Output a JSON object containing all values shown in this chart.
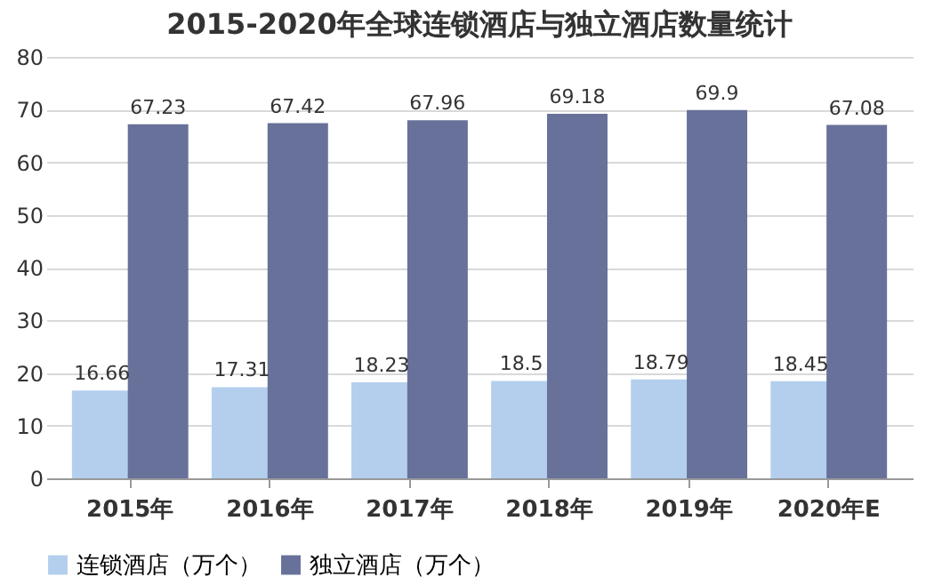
{
  "chart_data": {
    "type": "bar",
    "title": "2015-2020年全球连锁酒店与独立酒店数量统计",
    "categories": [
      "2015年",
      "2016年",
      "2017年",
      "2018年",
      "2019年",
      "2020年E"
    ],
    "series": [
      {
        "name": "连锁酒店（万个）",
        "color": "#b4cfee",
        "values": [
          16.66,
          17.31,
          18.23,
          18.5,
          18.79,
          18.45
        ]
      },
      {
        "name": "独立酒店（万个）",
        "color": "#67719a",
        "values": [
          67.23,
          67.42,
          67.96,
          69.18,
          69.9,
          67.08
        ]
      }
    ],
    "ylim": [
      0,
      80
    ],
    "yticks": [
      0,
      10,
      20,
      30,
      40,
      50,
      60,
      70,
      80
    ],
    "grid": "y",
    "legend": "bottom",
    "data_labels": true
  }
}
